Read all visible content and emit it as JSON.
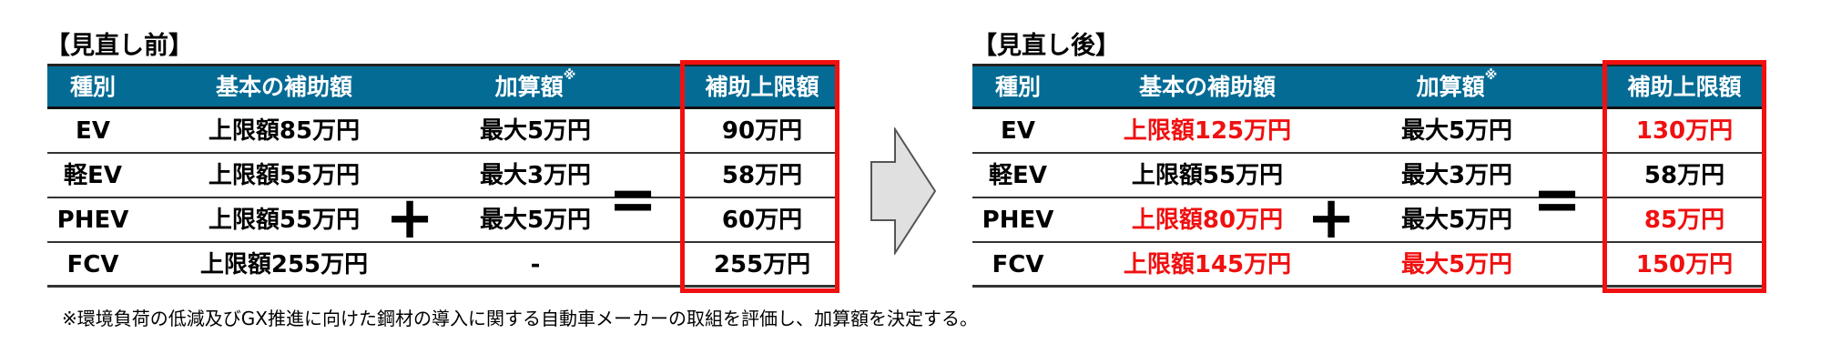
{
  "before": {
    "title": "【見直し前】",
    "headers": [
      "種別",
      "基本の補助額",
      "加算額",
      "補助上限額"
    ],
    "header_mark": "※",
    "rows": [
      {
        "type": "EV",
        "base": "上限額85万円",
        "add": "最大5万円",
        "cap": "90万円"
      },
      {
        "type": "軽EV",
        "base": "上限額55万円",
        "add": "最大3万円",
        "cap": "58万円"
      },
      {
        "type": "PHEV",
        "base": "上限額55万円",
        "add": "最大5万円",
        "cap": "60万円"
      },
      {
        "type": "FCV",
        "base": "上限額255万円",
        "add": "-",
        "cap": "255万円"
      }
    ]
  },
  "after": {
    "title": "【見直し後】",
    "headers": [
      "種別",
      "基本の補助額",
      "加算額",
      "補助上限額"
    ],
    "header_mark": "※",
    "rows": [
      {
        "type": "EV",
        "base": "上限額125万円",
        "add": "最大5万円",
        "cap": "130万円"
      },
      {
        "type": "軽EV",
        "base": "上限額55万円",
        "add": "最大3万円",
        "cap": "58万円"
      },
      {
        "type": "PHEV",
        "base": "上限額80万円",
        "add": "最大5万円",
        "cap": "85万円"
      },
      {
        "type": "FCV",
        "base": "上限額145万円",
        "add": "最大5万円",
        "cap": "150万円"
      }
    ]
  },
  "operators": {
    "plus": "+",
    "equals": "="
  },
  "footnote": "※環境負荷の低減及びGX推進に向けた鋼材の導入に関する自動車メーカーの取組を評価し、加算額を決定する。",
  "colors": {
    "header": "#046b94",
    "highlight": "#f01010"
  }
}
